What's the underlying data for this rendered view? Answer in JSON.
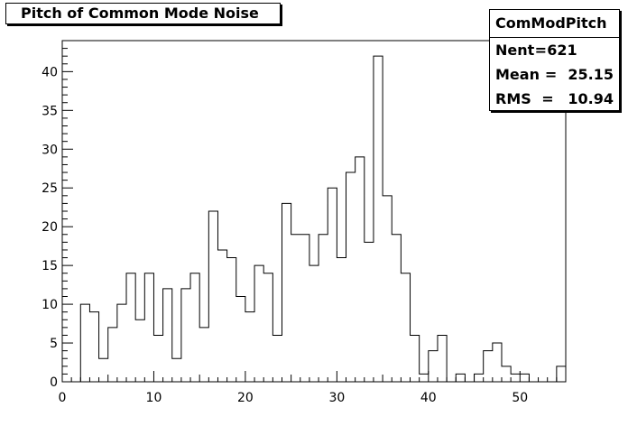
{
  "title": "Pitch of Common Mode Noise",
  "stats": {
    "name": "ComModPitch",
    "rows": [
      {
        "label": "Nent",
        "value": "621"
      },
      {
        "label": "Mean ",
        "value": "25.15"
      },
      {
        "label": "RMS  ",
        "value": "10.94"
      }
    ]
  },
  "chart_data": {
    "type": "bar",
    "subtype": "histogram",
    "title": "Pitch of Common Mode Noise",
    "xlabel": "",
    "ylabel": "",
    "xlim": [
      0,
      55
    ],
    "ylim": [
      0,
      44
    ],
    "bin_width": 1,
    "x_bin_low_edges": [
      0,
      1,
      2,
      3,
      4,
      5,
      6,
      7,
      8,
      9,
      10,
      11,
      12,
      13,
      14,
      15,
      16,
      17,
      18,
      19,
      20,
      21,
      22,
      23,
      24,
      25,
      26,
      27,
      28,
      29,
      30,
      31,
      32,
      33,
      34,
      35,
      36,
      37,
      38,
      39,
      40,
      41,
      42,
      43,
      44,
      45,
      46,
      47,
      48,
      49,
      50,
      51,
      52,
      53,
      54
    ],
    "values": [
      0,
      0,
      10,
      9,
      3,
      7,
      10,
      14,
      8,
      14,
      6,
      12,
      3,
      12,
      14,
      7,
      22,
      17,
      16,
      11,
      9,
      15,
      14,
      6,
      23,
      19,
      19,
      15,
      19,
      25,
      16,
      27,
      29,
      18,
      42,
      24,
      19,
      14,
      6,
      1,
      4,
      6,
      0,
      1,
      0,
      1,
      4,
      5,
      2,
      1,
      1,
      0,
      0,
      0,
      2
    ],
    "x_ticks": [
      0,
      10,
      20,
      30,
      40,
      50
    ],
    "x_tick_labels": [
      "0",
      "10",
      "20",
      "30",
      "40",
      "50"
    ],
    "y_ticks": [
      0,
      5,
      10,
      15,
      20,
      25,
      30,
      35,
      40
    ],
    "y_tick_labels": [
      "0",
      "5",
      "10",
      "15",
      "20",
      "25",
      "30",
      "35",
      "40"
    ],
    "grid": false,
    "legend": "stats box top-right"
  }
}
